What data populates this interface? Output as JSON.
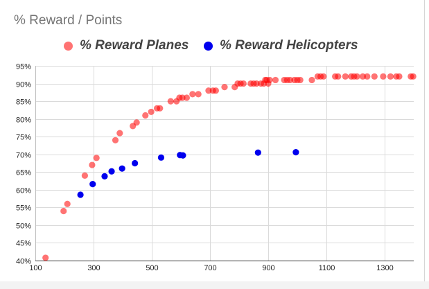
{
  "chart_data": {
    "type": "scatter",
    "title": "% Reward / Points",
    "xlabel": "",
    "ylabel": "",
    "xlim": [
      100,
      1400
    ],
    "ylim": [
      0.4,
      0.95
    ],
    "x_ticks": [
      100,
      300,
      500,
      700,
      900,
      1100,
      1300
    ],
    "x_tick_labels": [
      "100",
      "300",
      "500",
      "700",
      "900",
      "1100",
      "1300"
    ],
    "y_ticks": [
      0.4,
      0.45,
      0.5,
      0.55,
      0.6,
      0.65,
      0.7,
      0.75,
      0.8,
      0.85,
      0.9,
      0.95
    ],
    "y_tick_labels": [
      "40%",
      "45%",
      "50%",
      "55%",
      "60%",
      "65%",
      "70%",
      "75%",
      "80%",
      "85%",
      "90%",
      "95%"
    ],
    "grid": true,
    "legend_position": "top",
    "series": [
      {
        "name": "% Reward Planes",
        "color": "#ff0000",
        "points": [
          [
            135,
            0.408
          ],
          [
            197,
            0.54
          ],
          [
            210,
            0.56
          ],
          [
            270,
            0.64
          ],
          [
            295,
            0.67
          ],
          [
            310,
            0.69
          ],
          [
            375,
            0.74
          ],
          [
            390,
            0.76
          ],
          [
            435,
            0.78
          ],
          [
            448,
            0.79
          ],
          [
            478,
            0.81
          ],
          [
            498,
            0.82
          ],
          [
            518,
            0.83
          ],
          [
            528,
            0.83
          ],
          [
            565,
            0.85
          ],
          [
            585,
            0.85
          ],
          [
            595,
            0.86
          ],
          [
            605,
            0.86
          ],
          [
            620,
            0.86
          ],
          [
            640,
            0.87
          ],
          [
            660,
            0.87
          ],
          [
            695,
            0.88
          ],
          [
            710,
            0.88
          ],
          [
            720,
            0.88
          ],
          [
            750,
            0.89
          ],
          [
            785,
            0.89
          ],
          [
            795,
            0.9
          ],
          [
            805,
            0.9
          ],
          [
            815,
            0.9
          ],
          [
            840,
            0.9
          ],
          [
            850,
            0.9
          ],
          [
            860,
            0.9
          ],
          [
            875,
            0.9
          ],
          [
            885,
            0.9
          ],
          [
            890,
            0.91
          ],
          [
            895,
            0.91
          ],
          [
            900,
            0.9
          ],
          [
            905,
            0.91
          ],
          [
            925,
            0.91
          ],
          [
            955,
            0.91
          ],
          [
            965,
            0.91
          ],
          [
            975,
            0.91
          ],
          [
            990,
            0.91
          ],
          [
            1000,
            0.91
          ],
          [
            1010,
            0.91
          ],
          [
            1050,
            0.91
          ],
          [
            1070,
            0.92
          ],
          [
            1080,
            0.92
          ],
          [
            1090,
            0.92
          ],
          [
            1130,
            0.92
          ],
          [
            1140,
            0.92
          ],
          [
            1165,
            0.92
          ],
          [
            1185,
            0.92
          ],
          [
            1195,
            0.92
          ],
          [
            1205,
            0.92
          ],
          [
            1225,
            0.92
          ],
          [
            1240,
            0.92
          ],
          [
            1265,
            0.92
          ],
          [
            1295,
            0.92
          ],
          [
            1320,
            0.92
          ],
          [
            1340,
            0.92
          ],
          [
            1350,
            0.92
          ],
          [
            1390,
            0.92
          ],
          [
            1398,
            0.92
          ]
        ]
      },
      {
        "name": "% Reward Helicopters",
        "color": "#0000ee",
        "points": [
          [
            255,
            0.586
          ],
          [
            297,
            0.616
          ],
          [
            338,
            0.638
          ],
          [
            362,
            0.652
          ],
          [
            398,
            0.66
          ],
          [
            442,
            0.675
          ],
          [
            532,
            0.691
          ],
          [
            597,
            0.698
          ],
          [
            607,
            0.697
          ],
          [
            865,
            0.705
          ],
          [
            995,
            0.706
          ]
        ]
      }
    ]
  }
}
